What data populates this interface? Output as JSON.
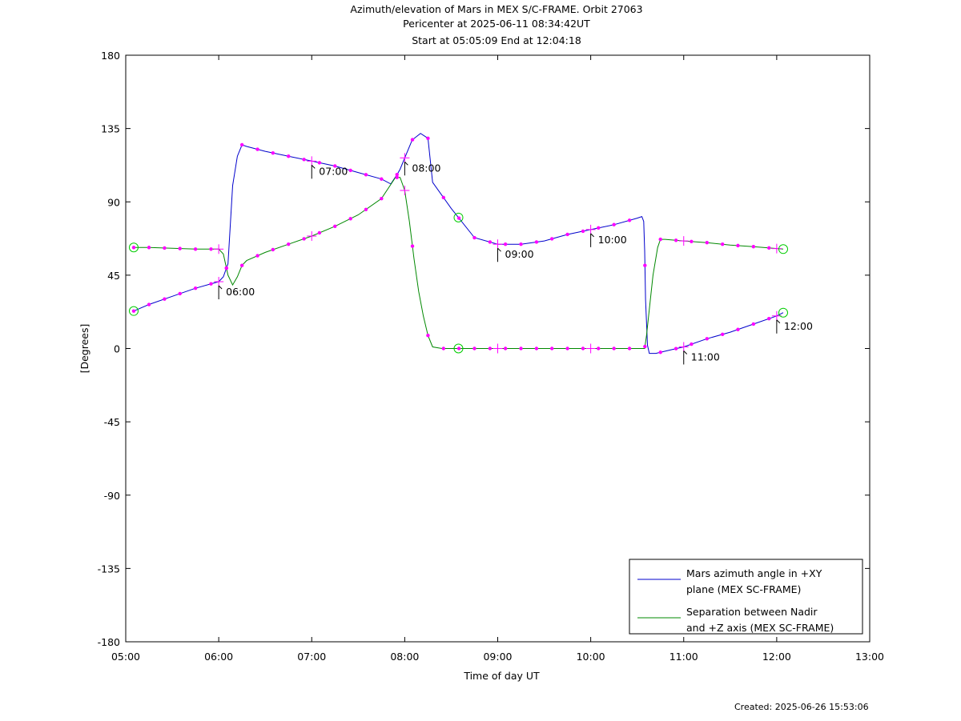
{
  "chart_data": {
    "type": "line",
    "title": "Azimuth/elevation of Mars in MEX S/C-FRAME.  Orbit 27063",
    "subtitle": "Pericenter at 2025-06-11 08:34:42UT",
    "subtitle2": "Start at 05:05:09 End at 12:04:18",
    "xlabel": "Time of day UT",
    "ylabel": "[Degrees]",
    "x_unit": "hours of day",
    "xlim": [
      5,
      13
    ],
    "ylim": [
      -180,
      180
    ],
    "x_ticks": [
      5,
      6,
      7,
      8,
      9,
      10,
      11,
      12,
      13
    ],
    "x_tick_labels": [
      "05:00",
      "06:00",
      "07:00",
      "08:00",
      "09:00",
      "10:00",
      "11:00",
      "12:00",
      "13:00"
    ],
    "y_ticks": [
      -180,
      -135,
      -90,
      -45,
      0,
      45,
      90,
      135,
      180
    ],
    "y_tick_labels": [
      "-180",
      "-135",
      "-90",
      "-45",
      "0",
      "45",
      "90",
      "135",
      "180"
    ],
    "grid": false,
    "legend_position": "bottom-right",
    "series": [
      {
        "name": "Mars azimuth angle in +XY plane (MEX SC-FRAME)",
        "legend_lines": [
          "Mars azimuth angle in +XY",
          "plane (MEX SC-FRAME)"
        ],
        "color": "#0000cc",
        "x": [
          5.086,
          5.25,
          5.5,
          5.75,
          6.0,
          6.05,
          6.1,
          6.15,
          6.2,
          6.25,
          6.3,
          6.5,
          6.75,
          7.0,
          7.25,
          7.5,
          7.75,
          7.85,
          7.92,
          7.95,
          8.0,
          8.08,
          8.17,
          8.25,
          8.3,
          8.5,
          8.75,
          9.0,
          9.25,
          9.5,
          9.75,
          10.0,
          10.25,
          10.5,
          10.55,
          10.57,
          10.58,
          10.59,
          10.61,
          10.63,
          10.7,
          10.85,
          11.0,
          11.25,
          11.5,
          11.75,
          12.0,
          12.07
        ],
        "y": [
          23,
          27,
          32,
          37,
          41,
          44,
          52,
          100,
          118,
          125,
          124,
          121,
          118,
          115,
          112,
          108,
          104,
          101,
          107,
          110,
          117,
          128,
          132,
          129,
          102,
          86,
          68,
          64,
          64,
          66,
          70,
          73,
          76,
          80,
          81,
          78,
          60,
          30,
          2,
          -3,
          -3,
          -1,
          1,
          6,
          10,
          15,
          20,
          22
        ]
      },
      {
        "name": "Separation between Nadir and +Z axis (MEX SC-FRAME)",
        "legend_lines": [
          "Separation between Nadir",
          "and +Z axis (MEX SC-FRAME)"
        ],
        "color": "#008800",
        "x": [
          5.086,
          5.25,
          5.5,
          5.75,
          6.0,
          6.05,
          6.1,
          6.15,
          6.2,
          6.25,
          6.3,
          6.5,
          6.75,
          7.0,
          7.25,
          7.5,
          7.75,
          7.9,
          7.95,
          8.0,
          8.05,
          8.1,
          8.15,
          8.2,
          8.25,
          8.3,
          8.4,
          8.6,
          9.0,
          9.5,
          10.0,
          10.5,
          10.58,
          10.6,
          10.63,
          10.67,
          10.72,
          10.75,
          10.8,
          11.0,
          11.25,
          11.5,
          11.75,
          12.07
        ],
        "y": [
          62,
          62,
          61.5,
          61,
          61,
          58,
          45,
          39,
          44,
          51,
          54,
          59,
          64,
          69,
          75,
          82,
          92,
          105,
          105,
          97,
          78,
          55,
          35,
          20,
          8,
          1,
          0,
          0,
          0,
          0,
          0,
          0,
          0,
          8,
          24,
          45,
          62,
          67,
          67,
          66,
          65,
          63.5,
          62.5,
          61
        ]
      }
    ],
    "markers": {
      "dot_x": [
        5.086,
        5.25,
        5.417,
        5.583,
        5.75,
        5.917,
        6.083,
        6.25,
        6.417,
        6.583,
        6.75,
        6.917,
        7.083,
        7.25,
        7.417,
        7.583,
        7.75,
        7.917,
        8.083,
        8.25,
        8.417,
        8.583,
        8.75,
        8.917,
        9.083,
        9.25,
        9.417,
        9.583,
        9.75,
        9.917,
        10.083,
        10.25,
        10.417,
        10.583,
        10.75,
        10.917,
        11.083,
        11.25,
        11.417,
        11.583,
        11.75,
        11.917
      ],
      "hour_cross_x": [
        6,
        7,
        8,
        9,
        10,
        11,
        12
      ],
      "circles": [
        {
          "series": 0,
          "x": 5.086
        },
        {
          "series": 0,
          "x": 12.07
        },
        {
          "series": 1,
          "x": 5.086
        },
        {
          "series": 1,
          "x": 12.07
        },
        {
          "series": 1,
          "x": 8.578
        },
        {
          "series": 0,
          "x": 8.578
        }
      ]
    },
    "annotations": [
      {
        "text": "06:00",
        "x": 6.0,
        "y": 41
      },
      {
        "text": "07:00",
        "x": 7.0,
        "y": 115
      },
      {
        "text": "08:00",
        "x": 8.0,
        "y": 117
      },
      {
        "text": "09:00",
        "x": 9.0,
        "y": 64
      },
      {
        "text": "10:00",
        "x": 10.0,
        "y": 73
      },
      {
        "text": "11:00",
        "x": 11.0,
        "y": 1
      },
      {
        "text": "12:00",
        "x": 12.0,
        "y": 20
      }
    ],
    "marker_color": "#ff00ff",
    "circle_color": "#00cc00"
  },
  "footer": {
    "created": "Created: 2025-06-26 15:53:06"
  }
}
